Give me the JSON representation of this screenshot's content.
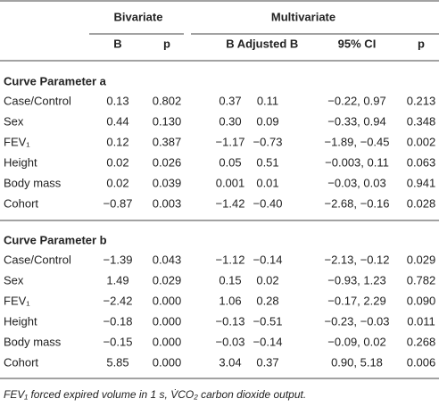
{
  "header": {
    "groups": [
      "Bivariate",
      "Multivariate"
    ],
    "columns": [
      "B",
      "p",
      "B",
      "Adjusted B",
      "95% CI",
      "p"
    ]
  },
  "sections": [
    {
      "title": "Curve Parameter a",
      "rows": [
        [
          "Case/Control",
          "0.13",
          "0.802",
          "0.37",
          "0.11",
          "−0.22, 0.97",
          "0.213"
        ],
        [
          "Sex",
          "0.44",
          "0.130",
          "0.30",
          "0.09",
          "−0.33, 0.94",
          "0.348"
        ],
        [
          "FEV₁",
          "0.12",
          "0.387",
          "−1.17",
          "−0.73",
          "−1.89, −0.45",
          "0.002"
        ],
        [
          "Height",
          "0.02",
          "0.026",
          "0.05",
          "0.51",
          "−0.003, 0.11",
          "0.063"
        ],
        [
          "Body mass",
          "0.02",
          "0.039",
          "0.001",
          "0.01",
          "−0.03, 0.03",
          "0.941"
        ],
        [
          "Cohort",
          "−0.87",
          "0.003",
          "−1.42",
          "−0.40",
          "−2.68, −0.16",
          "0.028"
        ]
      ]
    },
    {
      "title": "Curve Parameter b",
      "rows": [
        [
          "Case/Control",
          "−1.39",
          "0.043",
          "−1.12",
          "−0.14",
          "−2.13, −0.12",
          "0.029"
        ],
        [
          "Sex",
          "1.49",
          "0.029",
          "0.15",
          "0.02",
          "−0.93, 1.23",
          "0.782"
        ],
        [
          "FEV₁",
          "−2.42",
          "0.000",
          "1.06",
          "0.28",
          "−0.17, 2.29",
          "0.090"
        ],
        [
          "Height",
          "−0.18",
          "0.000",
          "−0.13",
          "−0.51",
          "−0.23, −0.03",
          "0.011"
        ],
        [
          "Body mass",
          "−0.15",
          "0.000",
          "−0.03",
          "−0.14",
          "−0.09, 0.02",
          "0.268"
        ],
        [
          "Cohort",
          "5.85",
          "0.000",
          "3.04",
          "0.37",
          "0.90, 5.18",
          "0.006"
        ]
      ]
    }
  ],
  "footnote": "FEV₁ forced expired volume in 1 s, V̇CO₂ carbon dioxide output."
}
